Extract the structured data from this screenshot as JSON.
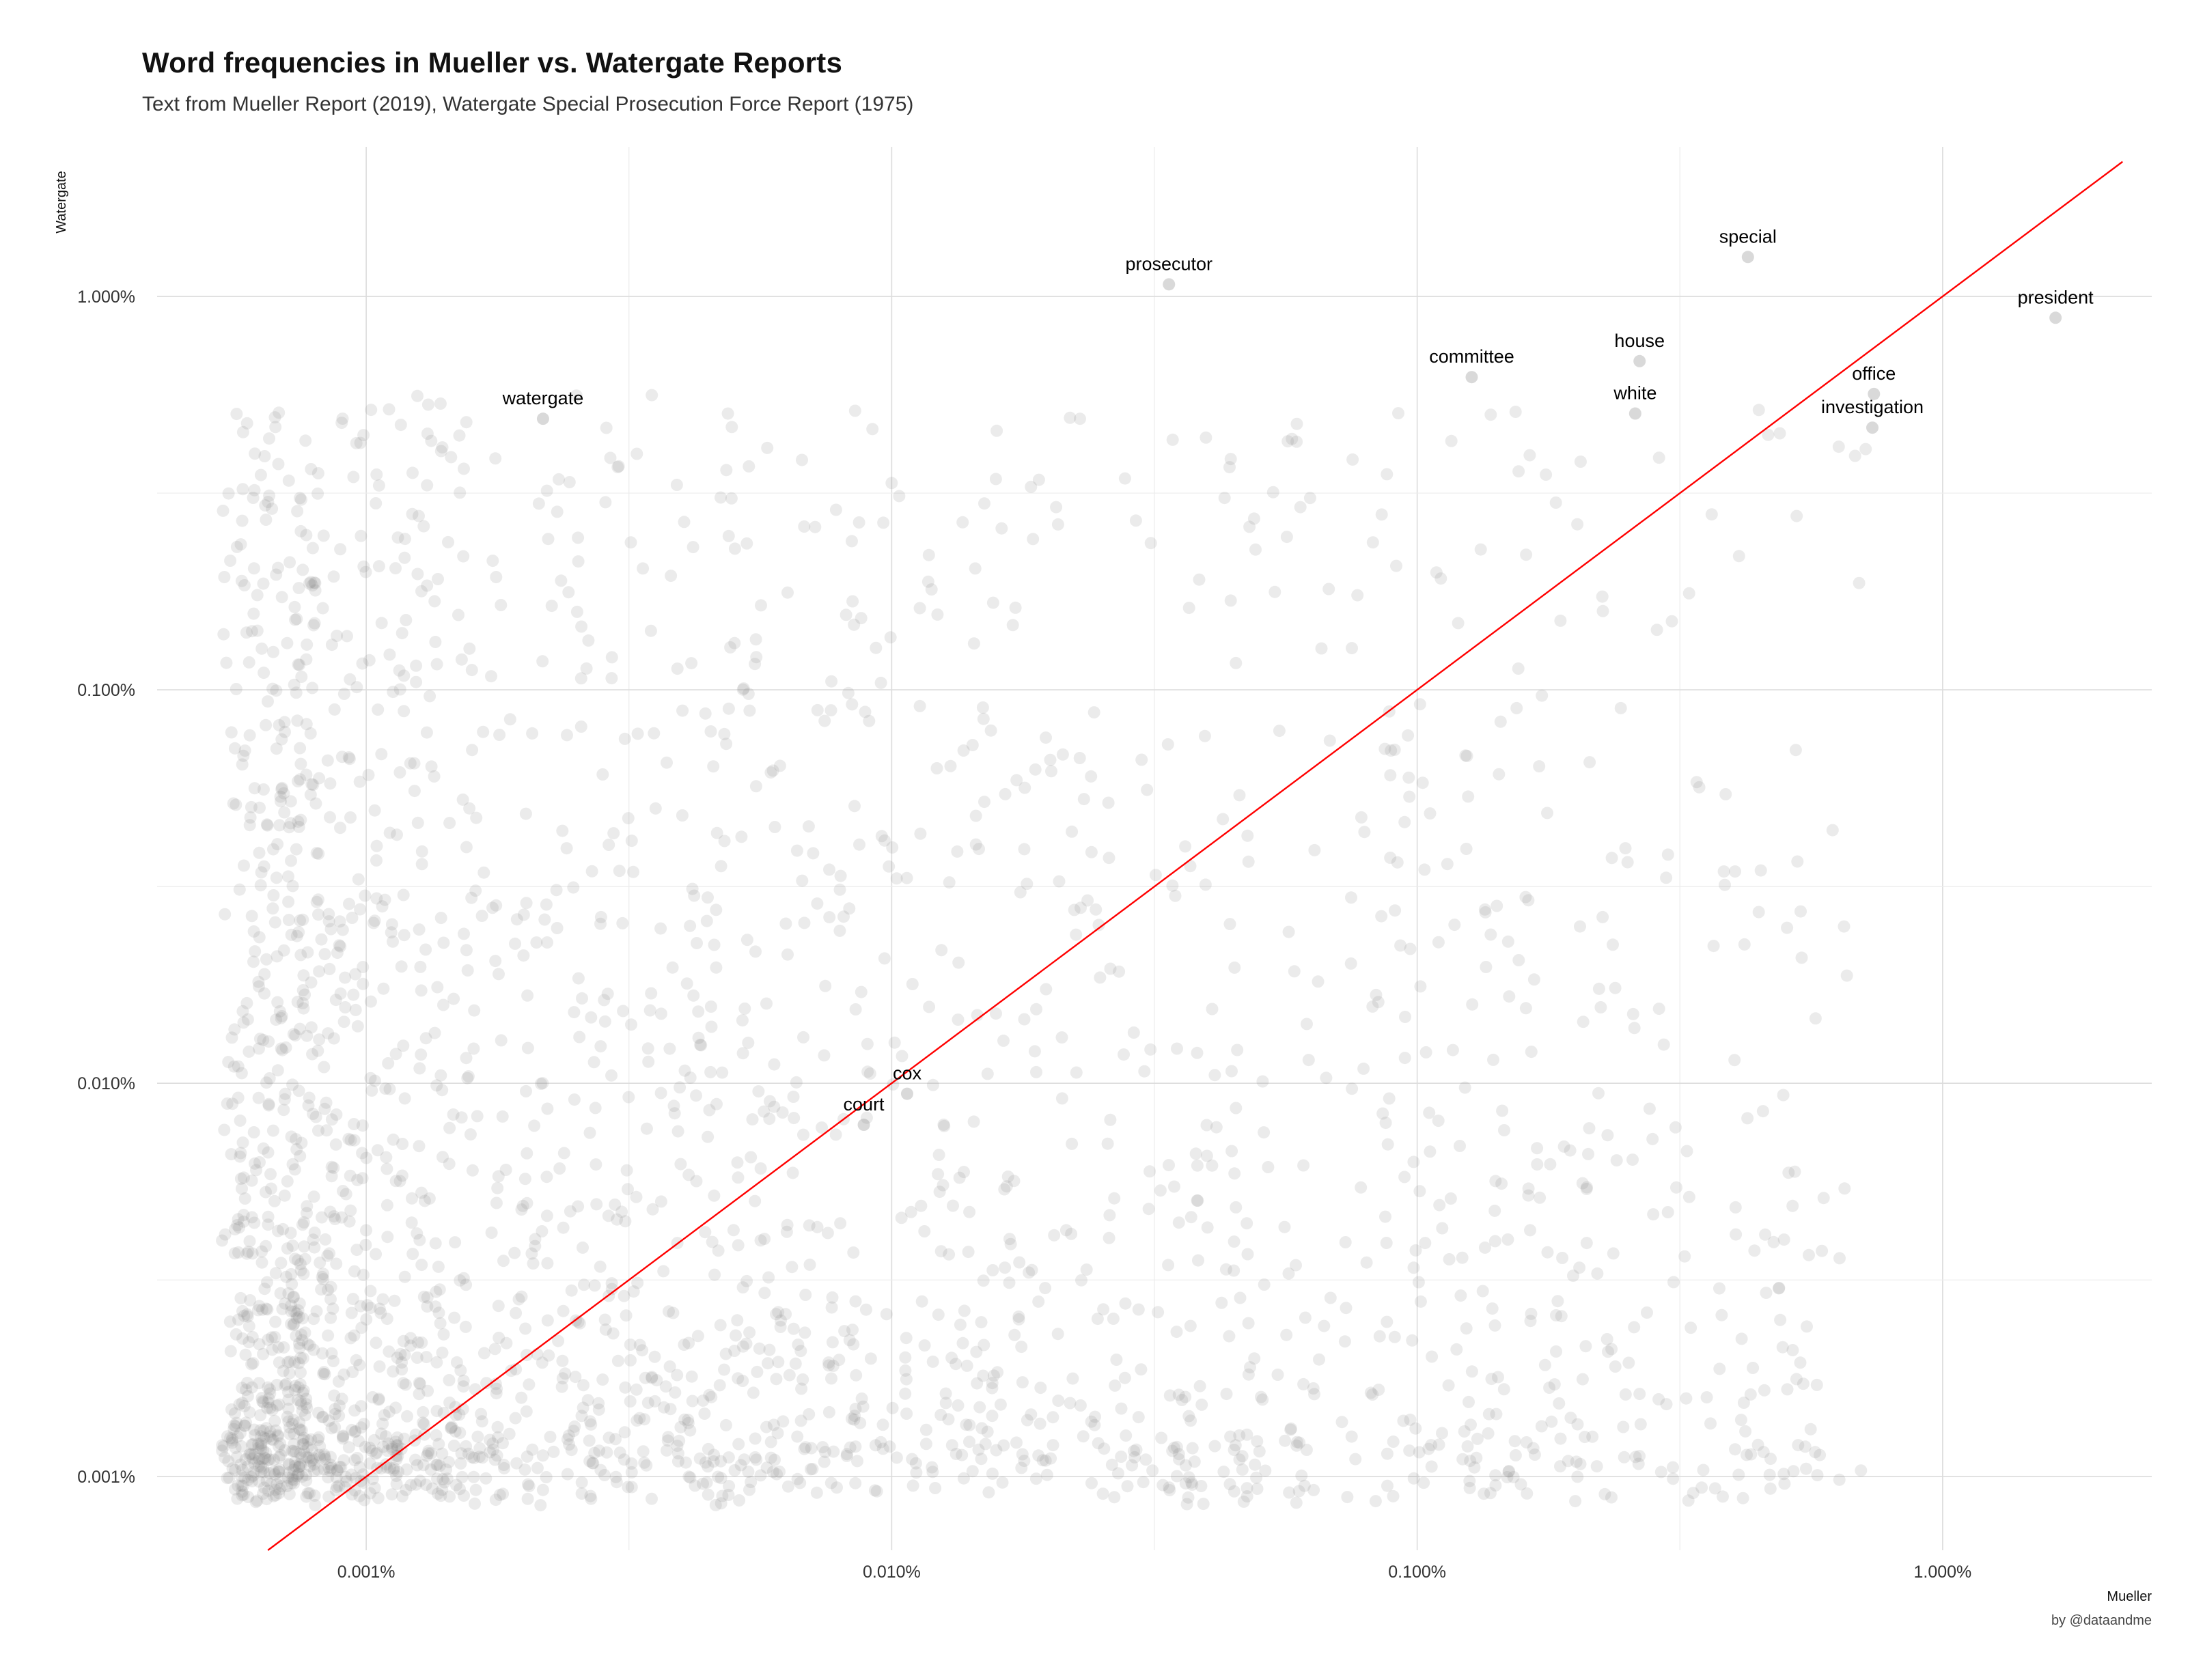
{
  "title": "Word frequencies in Mueller vs. Watergate Reports",
  "subtitle": "Text from Mueller Report (2019), Watergate Special Prosecution Force Report (1975)",
  "caption": "by @dataandme",
  "chart_data": {
    "type": "scatter",
    "title": "Word frequencies in Mueller vs. Watergate Reports",
    "subtitle": "Text from Mueller Report (2019), Watergate Special Prosecution Force Report (1975)",
    "xlabel": "Mueller",
    "ylabel": "Watergate",
    "x_scale": "log10",
    "y_scale": "log10",
    "xlim": [
      4e-06,
      0.025
    ],
    "ylim": [
      6.5e-06,
      0.024
    ],
    "x_ticks": [
      1e-05,
      0.0001,
      0.001,
      0.01
    ],
    "x_tick_labels": [
      "0.001%",
      "0.010%",
      "0.100%",
      "1.000%"
    ],
    "y_ticks": [
      1e-05,
      0.0001,
      0.001,
      0.01
    ],
    "y_tick_labels": [
      "0.001%",
      "0.010%",
      "0.100%",
      "1.000%"
    ],
    "reference_line": {
      "type": "identity",
      "color": "#ff0000"
    },
    "point_color": "#808080",
    "grid": true,
    "legend": "none",
    "background_points": "several thousand semi-transparent gray points, densest near x and y between 0.001% and 0.003%",
    "labels": [
      {
        "word": "special",
        "x": 0.00426,
        "y": 0.0142
      },
      {
        "word": "prosecutor",
        "x": 0.000337,
        "y": 0.0121
      },
      {
        "word": "president",
        "x": 0.0164,
        "y": 0.00995
      },
      {
        "word": "house",
        "x": 0.00265,
        "y": 0.00772
      },
      {
        "word": "committee",
        "x": 0.00127,
        "y": 0.00703
      },
      {
        "word": "office",
        "x": 0.0074,
        "y": 0.00637
      },
      {
        "word": "white",
        "x": 0.0026,
        "y": 0.00568
      },
      {
        "word": "investigation",
        "x": 0.00735,
        "y": 0.00523
      },
      {
        "word": "watergate",
        "x": 2.17e-05,
        "y": 0.00551
      },
      {
        "word": "court",
        "x": 8.85e-05,
        "y": 8.84e-05
      },
      {
        "word": "cox",
        "x": 0.000107,
        "y": 0.000106
      }
    ]
  }
}
